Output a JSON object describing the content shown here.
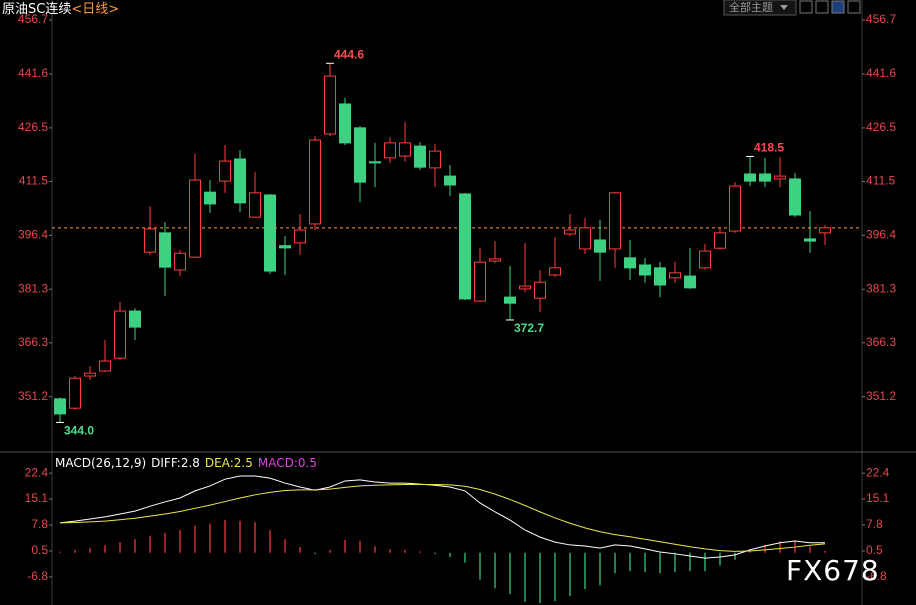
{
  "toolbar": {
    "theme": "全部主题"
  },
  "watermark": "FX678",
  "chart_data": [
    {
      "type": "candlestick",
      "title": "原油SC连续",
      "subtitle": "<日线>",
      "open": [
        350.6,
        348.0,
        357.0,
        358.4,
        362.0,
        375.2,
        391.7,
        397.1,
        386.7,
        390.3,
        408.5,
        411.6,
        417.8,
        401.5,
        407.7,
        393.5,
        394.3,
        399.6,
        424.8,
        433.2,
        426.5,
        417.0,
        418.1,
        418.6,
        421.4,
        415.3,
        413.0,
        408.0,
        378.0,
        389.2,
        379.1,
        381.4,
        378.8,
        385.3,
        396.8,
        392.6,
        395.1,
        392.6,
        390.1,
        388.1,
        387.3,
        384.5,
        385.0,
        387.3,
        392.8,
        397.6,
        413.6,
        413.6,
        412.2,
        412.2,
        395.4,
        397.1
      ],
      "high": [
        351.0,
        357.0,
        359.8,
        367.1,
        377.7,
        376.0,
        404.6,
        400.1,
        392.3,
        419.2,
        411.9,
        421.7,
        420.3,
        414.1,
        408.0,
        396.2,
        402.4,
        424.2,
        444.6,
        434.9,
        427.0,
        422.3,
        423.9,
        428.1,
        422.5,
        422.0,
        416.1,
        408.3,
        392.9,
        394.8,
        387.8,
        394.3,
        386.7,
        395.9,
        402.4,
        401.3,
        400.7,
        408.5,
        395.1,
        390.1,
        389.0,
        389.0,
        392.9,
        394.0,
        398.7,
        411.3,
        418.5,
        418.1,
        418.3,
        413.9,
        403.2,
        399.3
      ],
      "low": [
        344.0,
        347.5,
        355.9,
        358.1,
        361.5,
        367.1,
        390.9,
        379.4,
        385.0,
        390.1,
        402.7,
        408.3,
        402.9,
        401.3,
        385.6,
        385.3,
        390.9,
        397.9,
        424.2,
        421.7,
        405.7,
        409.9,
        416.7,
        417.0,
        414.7,
        409.9,
        407.4,
        378.3,
        377.7,
        388.7,
        372.7,
        380.5,
        374.9,
        384.7,
        396.2,
        391.2,
        383.6,
        387.3,
        383.9,
        383.1,
        379.1,
        383.1,
        381.4,
        386.7,
        392.3,
        397.1,
        410.2,
        409.9,
        409.9,
        401.5,
        391.5,
        393.7
      ],
      "close": [
        346.4,
        356.4,
        357.8,
        361.2,
        375.2,
        370.7,
        398.2,
        387.5,
        391.4,
        411.9,
        405.2,
        417.2,
        405.5,
        408.3,
        386.4,
        392.9,
        397.9,
        423.1,
        441.0,
        422.3,
        411.3,
        416.7,
        422.3,
        422.3,
        415.5,
        420.0,
        410.5,
        378.6,
        388.9,
        389.8,
        377.4,
        382.2,
        383.3,
        387.3,
        397.9,
        398.5,
        391.7,
        408.3,
        387.3,
        385.3,
        382.5,
        385.9,
        381.7,
        392.0,
        397.1,
        410.2,
        411.6,
        411.6,
        413.0,
        402.1,
        394.8,
        398.5
      ],
      "up_color": "#ff3c3c",
      "down_color": "#3cd282",
      "ylim": [
        336,
        458.4
      ],
      "yticks": [
        456.7,
        441.6,
        426.5,
        411.5,
        396.4,
        381.3,
        366.3,
        351.2
      ],
      "last_price_line": true,
      "last_price_color": "#ff9a3c",
      "annotations": [
        {
          "label": "444.6",
          "value": 444.6
        },
        {
          "label": "372.7",
          "value": 372.7
        },
        {
          "label": "344.0",
          "value": 344.0
        },
        {
          "label": "418.5",
          "value": 418.5
        }
      ]
    },
    {
      "type": "macd",
      "title": "MACD(26,12,9)",
      "series": [
        {
          "name": "DIFF:2.8",
          "color": "#ffffff",
          "kind": "line",
          "values": [
            8.4,
            8.9,
            9.5,
            10.1,
            10.9,
            11.7,
            13.1,
            14.3,
            15.4,
            17.4,
            18.8,
            20.7,
            21.6,
            21.6,
            21.0,
            19.6,
            18.5,
            17.6,
            18.5,
            20.2,
            20.5,
            19.9,
            19.6,
            19.6,
            19.3,
            19.0,
            18.5,
            17.4,
            14.0,
            11.5,
            9.2,
            6.4,
            4.4,
            3.0,
            2.2,
            1.9,
            1.3,
            2.2,
            1.9,
            1.1,
            0.2,
            -0.3,
            -0.9,
            -1.5,
            -1.2,
            -0.6,
            0.8,
            1.9,
            2.8,
            3.3,
            2.8,
            2.8
          ]
        },
        {
          "name": "DEA:2.5",
          "color": "#e8e84a",
          "kind": "line",
          "values": [
            8.4,
            8.5,
            8.7,
            8.9,
            9.3,
            9.7,
            10.3,
            10.9,
            11.6,
            12.5,
            13.4,
            14.4,
            15.4,
            16.3,
            17.0,
            17.5,
            17.7,
            17.7,
            17.9,
            18.4,
            18.8,
            19.0,
            19.1,
            19.2,
            19.2,
            19.2,
            19.1,
            18.7,
            17.8,
            16.5,
            15.0,
            13.3,
            11.5,
            9.8,
            8.3,
            7.0,
            5.9,
            5.1,
            4.5,
            3.8,
            3.1,
            2.4,
            1.7,
            1.1,
            0.6,
            0.4,
            0.5,
            0.8,
            1.2,
            1.6,
            2.1,
            2.5
          ]
        },
        {
          "name": "MACD:0.5",
          "color": "#ff3c3c",
          "negative_color": "#3cd282",
          "label_color": "#e040e0",
          "kind": "bar",
          "values": [
            0.3,
            0.8,
            1.4,
            2.1,
            3.0,
            3.8,
            4.8,
            5.6,
            6.4,
            7.6,
            8.2,
            9.2,
            9.0,
            8.6,
            6.4,
            3.8,
            1.6,
            -0.4,
            0.8,
            3.6,
            3.4,
            1.8,
            1.0,
            0.8,
            0.4,
            -0.4,
            -1.2,
            -2.8,
            -7.6,
            -10.0,
            -11.6,
            -13.8,
            -14.2,
            -13.6,
            -12.2,
            -10.2,
            -9.2,
            -5.8,
            -5.2,
            -5.4,
            -5.8,
            -5.4,
            -5.2,
            -5.2,
            -3.6,
            -2.0,
            0.6,
            2.2,
            3.2,
            3.4,
            1.8,
            0.5
          ]
        }
      ],
      "ylim": [
        -14.7,
        27.5
      ],
      "yticks": [
        22.4,
        15.1,
        7.8,
        0.5,
        -6.8
      ]
    }
  ]
}
